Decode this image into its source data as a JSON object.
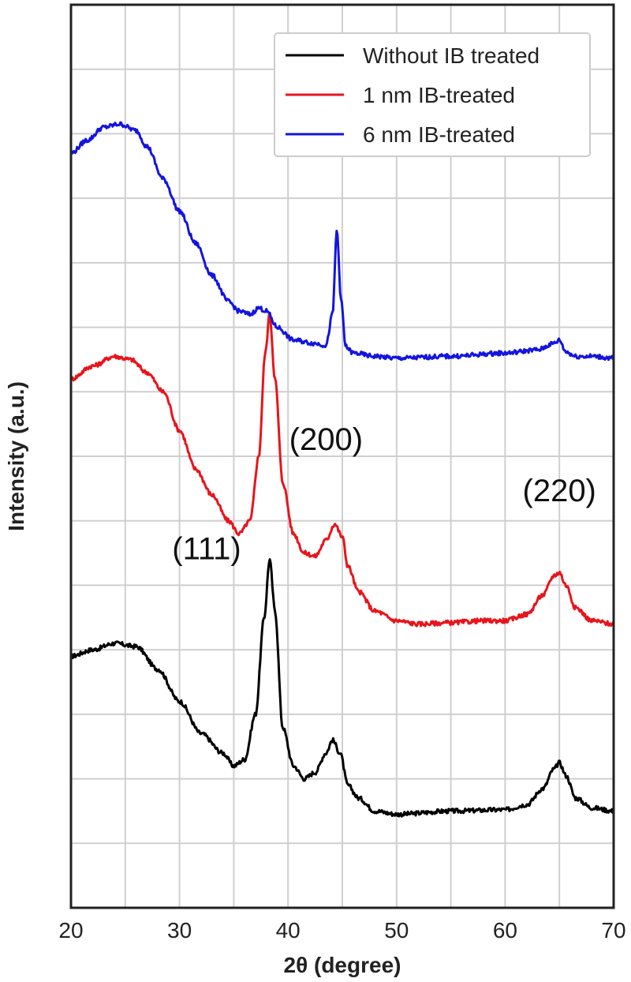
{
  "chart_data": {
    "type": "line",
    "xlabel": "2θ (degree)",
    "ylabel": "Intensity (a.u.)",
    "xlim": [
      20,
      70
    ],
    "ylim": [
      0,
      14
    ],
    "x_ticks": [
      20,
      30,
      40,
      50,
      60,
      70
    ],
    "y_tick_labels": "none",
    "grid": true,
    "legend_position": "top-right",
    "colors": {
      "black": "#000000",
      "red": "#e8141c",
      "blue": "#1414e0"
    },
    "series": [
      {
        "name": "Without IB treated",
        "color": "#000000",
        "points": [
          [
            20,
            3.9
          ],
          [
            22,
            4.0
          ],
          [
            24,
            4.1
          ],
          [
            26,
            4.05
          ],
          [
            28,
            3.7
          ],
          [
            30,
            3.2
          ],
          [
            32,
            2.7
          ],
          [
            34,
            2.4
          ],
          [
            35,
            2.2
          ],
          [
            36,
            2.3
          ],
          [
            37,
            3.0
          ],
          [
            37.8,
            4.5
          ],
          [
            38.3,
            5.4
          ],
          [
            38.8,
            4.6
          ],
          [
            39.5,
            2.8
          ],
          [
            40.5,
            2.2
          ],
          [
            41.5,
            2.0
          ],
          [
            42.5,
            2.1
          ],
          [
            43.5,
            2.4
          ],
          [
            44.1,
            2.6
          ],
          [
            44.8,
            2.4
          ],
          [
            45.5,
            1.9
          ],
          [
            46.5,
            1.7
          ],
          [
            48,
            1.5
          ],
          [
            50,
            1.45
          ],
          [
            55,
            1.5
          ],
          [
            60,
            1.52
          ],
          [
            62,
            1.6
          ],
          [
            63.5,
            1.85
          ],
          [
            64.5,
            2.15
          ],
          [
            65,
            2.25
          ],
          [
            65.6,
            2.05
          ],
          [
            66.5,
            1.7
          ],
          [
            68,
            1.55
          ],
          [
            70,
            1.5
          ]
        ]
      },
      {
        "name": "1 nm IB-treated",
        "color": "#e8141c",
        "points": [
          [
            20,
            8.2
          ],
          [
            22,
            8.4
          ],
          [
            24,
            8.55
          ],
          [
            25.5,
            8.5
          ],
          [
            27,
            8.3
          ],
          [
            28.5,
            8.0
          ],
          [
            30,
            7.4
          ],
          [
            31.5,
            6.8
          ],
          [
            33,
            6.4
          ],
          [
            34.5,
            6.0
          ],
          [
            35.5,
            5.8
          ],
          [
            36.5,
            6.0
          ],
          [
            37.3,
            7.0
          ],
          [
            37.9,
            8.6
          ],
          [
            38.3,
            9.2
          ],
          [
            38.8,
            8.2
          ],
          [
            39.5,
            6.6
          ],
          [
            40.5,
            5.8
          ],
          [
            41.5,
            5.5
          ],
          [
            42.5,
            5.45
          ],
          [
            43.5,
            5.7
          ],
          [
            44.3,
            5.95
          ],
          [
            45,
            5.75
          ],
          [
            45.5,
            5.3
          ],
          [
            46.5,
            4.9
          ],
          [
            48,
            4.6
          ],
          [
            50,
            4.45
          ],
          [
            52,
            4.4
          ],
          [
            55,
            4.42
          ],
          [
            58,
            4.45
          ],
          [
            60,
            4.45
          ],
          [
            62,
            4.55
          ],
          [
            63.5,
            4.85
          ],
          [
            64.5,
            5.15
          ],
          [
            65,
            5.2
          ],
          [
            65.6,
            5.0
          ],
          [
            66.5,
            4.65
          ],
          [
            68,
            4.45
          ],
          [
            70,
            4.4
          ]
        ]
      },
      {
        "name": "6 nm IB-treated",
        "color": "#1414e0",
        "points": [
          [
            20,
            11.7
          ],
          [
            21.5,
            11.9
          ],
          [
            23,
            12.1
          ],
          [
            24.5,
            12.15
          ],
          [
            26,
            12.05
          ],
          [
            27,
            11.8
          ],
          [
            28.5,
            11.3
          ],
          [
            30,
            10.8
          ],
          [
            31.5,
            10.3
          ],
          [
            33,
            9.8
          ],
          [
            34.5,
            9.4
          ],
          [
            35.5,
            9.25
          ],
          [
            36.5,
            9.2
          ],
          [
            37.3,
            9.3
          ],
          [
            38,
            9.25
          ],
          [
            39,
            9.0
          ],
          [
            40.5,
            8.8
          ],
          [
            42.5,
            8.75
          ],
          [
            43.5,
            8.72
          ],
          [
            44.1,
            9.2
          ],
          [
            44.5,
            10.5
          ],
          [
            44.9,
            9.4
          ],
          [
            45.3,
            8.7
          ],
          [
            46,
            8.6
          ],
          [
            48,
            8.55
          ],
          [
            50,
            8.52
          ],
          [
            55,
            8.55
          ],
          [
            60,
            8.6
          ],
          [
            63,
            8.65
          ],
          [
            64.5,
            8.75
          ],
          [
            65,
            8.8
          ],
          [
            65.6,
            8.62
          ],
          [
            66.5,
            8.55
          ],
          [
            68,
            8.55
          ],
          [
            70,
            8.52
          ]
        ]
      }
    ],
    "annotations": [
      {
        "text": "(111)",
        "x": 32.5,
        "y": 5.4
      },
      {
        "text": "(200)",
        "x": 43.5,
        "y": 7.1
      },
      {
        "text": "(220)",
        "x": 65,
        "y": 6.3
      }
    ]
  }
}
